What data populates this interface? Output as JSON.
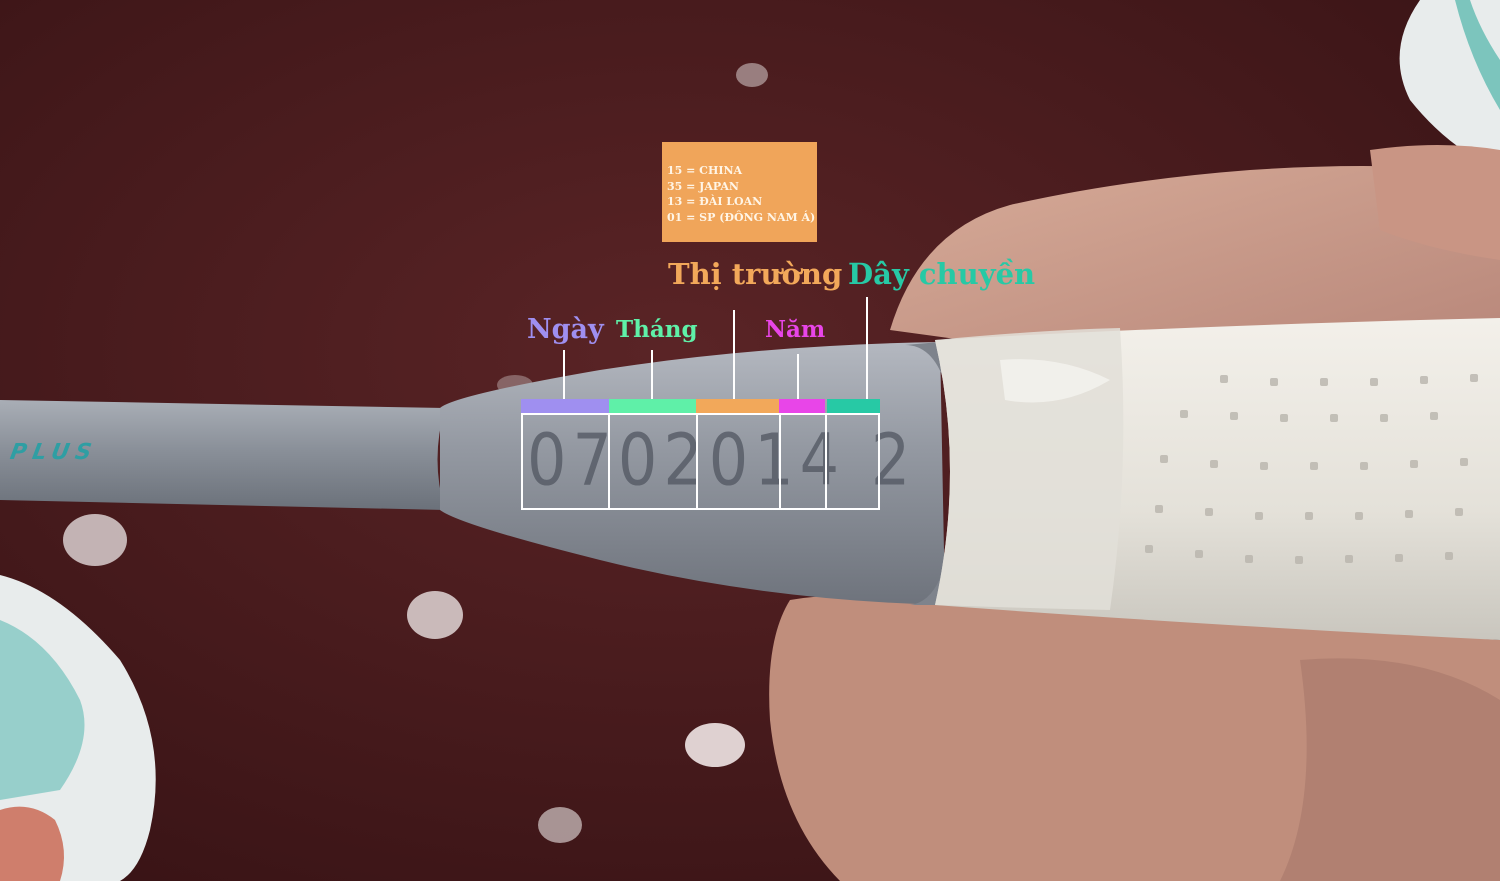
{
  "photo": {
    "subject": "racket-handle",
    "colors": {
      "background": "#4a1c1e",
      "shaft": "#8c929c",
      "grip": "#ece9e2",
      "skin": "#c89a86"
    }
  },
  "shaft_logo": "PLUS",
  "serial_number": "0702014 2",
  "info_box": {
    "lines": [
      "15 = CHINA",
      "35 = JAPAN",
      "13 = ĐÀI LOAN",
      "01 = SP (ĐÔNG NAM Á)"
    ],
    "color": "#f0a55a"
  },
  "labels": {
    "ngay": "Ngày",
    "thang": "Tháng",
    "thi_truong": "Thị trường",
    "nam": "Năm",
    "day_chuyen": "Dây chuyền"
  },
  "segments": [
    {
      "name": "ngay",
      "color": "#9f8ff0"
    },
    {
      "name": "thang",
      "color": "#5ff0a8"
    },
    {
      "name": "thi-truong",
      "color": "#f2a85a"
    },
    {
      "name": "nam",
      "color": "#e845e8"
    },
    {
      "name": "day-chuyen",
      "color": "#27c9a5"
    }
  ]
}
